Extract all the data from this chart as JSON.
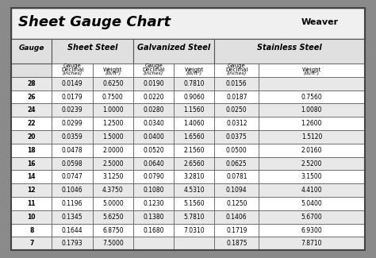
{
  "title": "Sheet Gauge Chart",
  "background_outer": "#8a8a8a",
  "background_inner": "#ffffff",
  "header_bg": "#d0d0d0",
  "row_alt_bg": "#e8e8e8",
  "row_white_bg": "#ffffff",
  "gauges": [
    28,
    26,
    24,
    22,
    20,
    18,
    16,
    14,
    12,
    11,
    10,
    8,
    7
  ],
  "sheet_steel": {
    "decimal": [
      "0.0149",
      "0.0179",
      "0.0239",
      "0.0299",
      "0.0359",
      "0.0478",
      "0.0598",
      "0.0747",
      "0.1046",
      "0.1196",
      "0.1345",
      "0.1644",
      "0.1793"
    ],
    "weight": [
      "0.6250",
      "0.7500",
      "1.0000",
      "1.2500",
      "1.5000",
      "2.0000",
      "2.5000",
      "3.1250",
      "4.3750",
      "5.0000",
      "5.6250",
      "6.8750",
      "7.5000"
    ]
  },
  "galvanized_steel": {
    "decimal": [
      "0.0190",
      "0.0220",
      "0.0280",
      "0.0340",
      "0.0400",
      "0.0520",
      "0.0640",
      "0.0790",
      "0.1080",
      "0.1230",
      "0.1380",
      "0.1680",
      ""
    ],
    "weight": [
      "0.7810",
      "0.9060",
      "1.1560",
      "1.4060",
      "1.6560",
      "2.1560",
      "2.6560",
      "3.2810",
      "4.5310",
      "5.1560",
      "5.7810",
      "7.0310",
      ""
    ]
  },
  "stainless_steel": {
    "decimal": [
      "0.0156",
      "0.0187",
      "0.0250",
      "0.0312",
      "0.0375",
      "0.0500",
      "0.0625",
      "0.0781",
      "0.1094",
      "0.1250",
      "0.1406",
      "0.1719",
      "0.1875"
    ],
    "weight": [
      "",
      "0.7560",
      "1.0080",
      "1.2600",
      "1.5120",
      "2.0160",
      "2.5200",
      "3.1500",
      "4.4100",
      "5.0400",
      "5.6700",
      "6.9300",
      "7.8710"
    ]
  }
}
